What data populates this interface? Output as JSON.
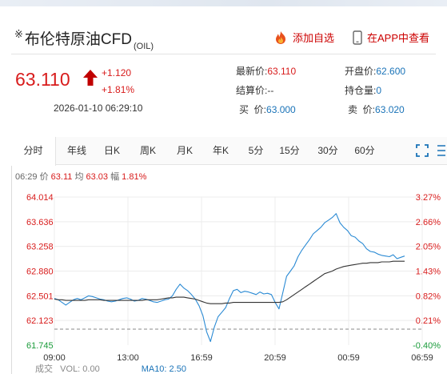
{
  "header": {
    "title_mark": "※",
    "title": "布伦特原油CFD",
    "code": "(OIL)",
    "add_favorite": "添加自选",
    "view_in_app": "在APP中查看"
  },
  "quote": {
    "price": "63.110",
    "change": "+1.120",
    "change_pct": "+1.81%",
    "timestamp": "2026-01-10 06:29:10"
  },
  "info": {
    "latest_label": "最新价:",
    "latest_value": "63.110",
    "settle_label": "结算价:",
    "settle_value": "--",
    "buy_label": "买  价:",
    "buy_value": "63.000",
    "open_label": "开盘价:",
    "open_value": "62.600",
    "position_label": "持仓量:",
    "position_value": "0",
    "sell_label": "卖  价:",
    "sell_value": "63.020"
  },
  "tabs": [
    {
      "label": "分时"
    },
    {
      "label": "年线"
    },
    {
      "label": "日K"
    },
    {
      "label": "周K"
    },
    {
      "label": "月K"
    },
    {
      "label": "年K"
    },
    {
      "label": "5分"
    },
    {
      "label": "15分"
    },
    {
      "label": "30分"
    },
    {
      "label": "60分"
    }
  ],
  "crosshair": {
    "time": "06:29",
    "price_label": "价",
    "price": "63.11",
    "avg_label": "均",
    "avg": "63.03",
    "amp_label": "幅",
    "amp": "1.81%"
  },
  "volume": {
    "label": "成交",
    "vol": "VOL: 0.00",
    "ma": "MA10: 2.50"
  },
  "colors": {
    "up": "#d81c1c",
    "down": "#1a9b3a",
    "price_line": "#2a8ad4",
    "avg_line": "#333333"
  },
  "chart_data": {
    "type": "line",
    "y_ticks_left": [
      "64.014",
      "63.636",
      "63.258",
      "62.880",
      "62.501",
      "62.123",
      "61.745"
    ],
    "y_ticks_right": [
      "3.27%",
      "2.66%",
      "2.05%",
      "1.43%",
      "0.82%",
      "0.21%",
      "-0.40%"
    ],
    "x_ticks": [
      "09:00",
      "13:00",
      "16:59",
      "20:59",
      "00:59",
      "06:59"
    ],
    "ylim": [
      61.745,
      64.014
    ],
    "baseline": 61.99,
    "series": [
      {
        "values": [
          62.46,
          62.44,
          62.4,
          62.36,
          62.4,
          62.44,
          62.46,
          62.44,
          62.47,
          62.5,
          62.49,
          62.47,
          62.45,
          62.44,
          62.42,
          62.41,
          62.42,
          62.44,
          62.46,
          62.47,
          62.45,
          62.42,
          62.43,
          62.46,
          62.45,
          62.43,
          62.41,
          62.4,
          62.42,
          62.44,
          62.45,
          62.5,
          62.6,
          62.68,
          62.62,
          62.58,
          62.52,
          62.45,
          62.35,
          62.2,
          61.95,
          61.8,
          62.02,
          62.18,
          62.25,
          62.32,
          62.46,
          62.58,
          62.6,
          62.55,
          62.57,
          62.56,
          62.54,
          62.52,
          62.56,
          62.53,
          62.54,
          62.52,
          62.4,
          62.3,
          62.55,
          62.8,
          62.88,
          62.96,
          63.1,
          63.2,
          63.28,
          63.36,
          63.45,
          63.5,
          63.55,
          63.62,
          63.66,
          63.7,
          63.76,
          63.62,
          63.55,
          63.5,
          63.42,
          63.4,
          63.34,
          63.3,
          63.22,
          63.18,
          63.17,
          63.14,
          63.12,
          63.11,
          63.1,
          63.13,
          63.07,
          63.09,
          63.11
        ]
      },
      {
        "values": [
          62.45,
          62.44,
          62.44,
          62.43,
          62.43,
          62.43,
          62.43,
          62.43,
          62.43,
          62.44,
          62.44,
          62.44,
          62.44,
          62.43,
          62.43,
          62.43,
          62.43,
          62.43,
          62.43,
          62.43,
          62.43,
          62.43,
          62.43,
          62.43,
          62.44,
          62.44,
          62.44,
          62.44,
          62.45,
          62.46,
          62.47,
          62.47,
          62.48,
          62.48,
          62.48,
          62.47,
          62.46,
          62.45,
          62.43,
          62.41,
          62.39,
          62.38,
          62.38,
          62.38,
          62.38,
          62.39,
          62.39,
          62.4,
          62.4,
          62.4,
          62.4,
          62.4,
          62.4,
          62.4,
          62.4,
          62.4,
          62.4,
          62.4,
          62.4,
          62.4,
          62.41,
          62.44,
          62.48,
          62.52,
          62.56,
          62.6,
          62.64,
          62.68,
          62.72,
          62.76,
          62.8,
          62.84,
          62.86,
          62.88,
          62.91,
          62.93,
          62.95,
          62.96,
          62.97,
          62.98,
          62.99,
          63.0,
          63.0,
          63.01,
          63.01,
          63.01,
          63.02,
          63.02,
          63.02,
          63.03,
          63.03,
          63.03,
          63.03
        ]
      }
    ]
  }
}
